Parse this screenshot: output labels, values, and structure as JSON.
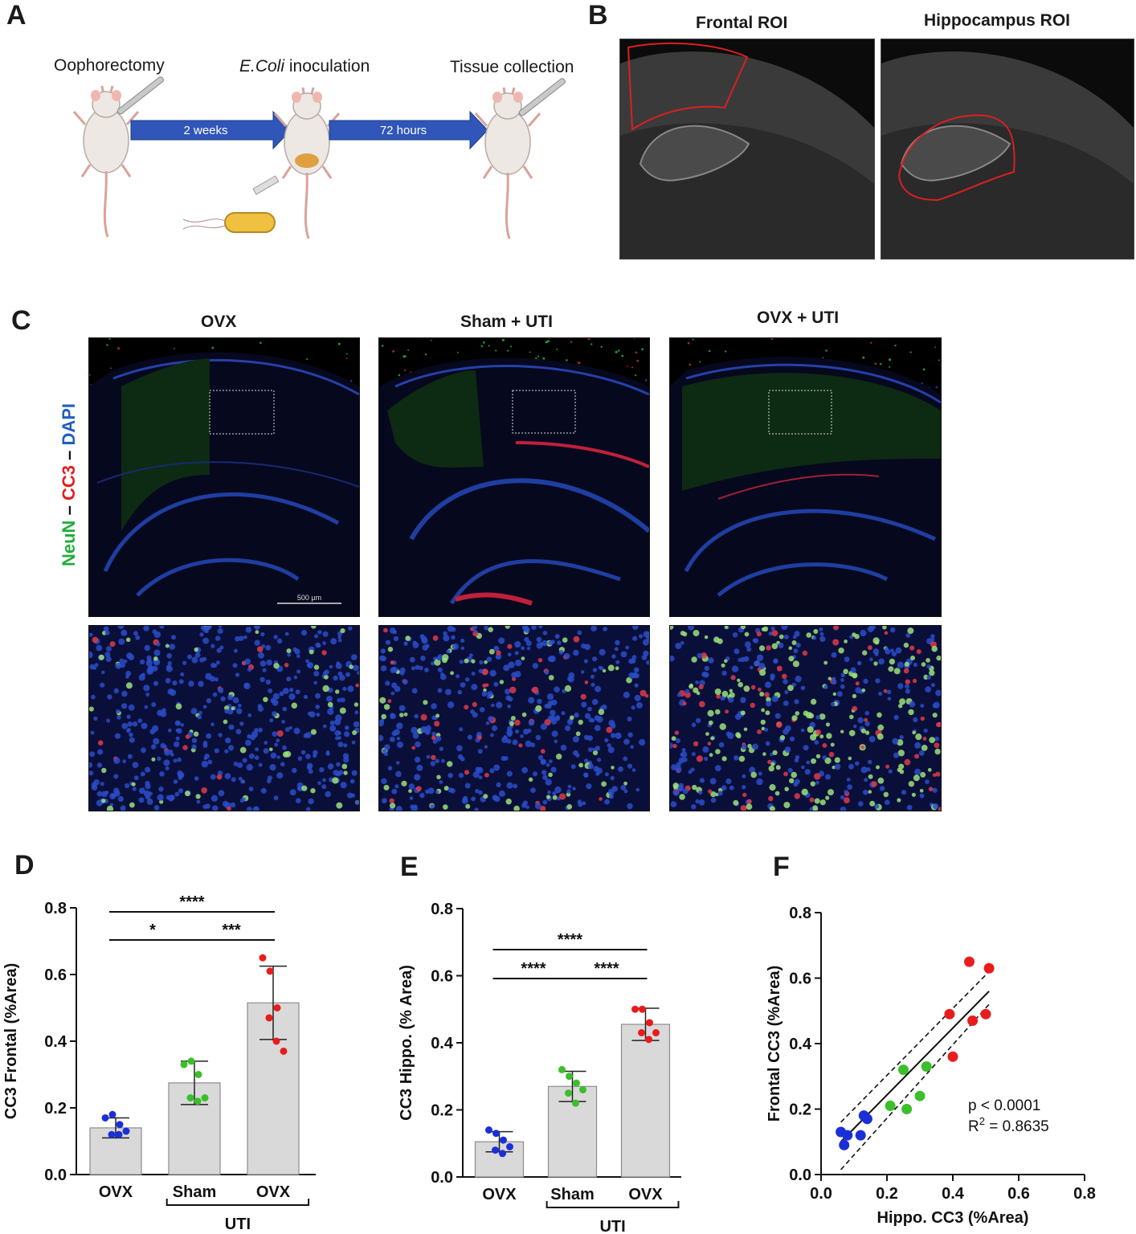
{
  "panel_A": {
    "letter": "A",
    "steps": [
      "Oophorectomy",
      "E.Coli",
      "inoculation",
      "Tissue collection"
    ],
    "arrow_1": "2 weeks",
    "arrow_2": "72 hours"
  },
  "panel_B": {
    "letter": "B",
    "roi_1": "Frontal ROI",
    "roi_2": "Hippocampus ROI"
  },
  "panel_C": {
    "letter": "C",
    "groups": [
      "OVX",
      "Sham + UTI",
      "OVX + UTI"
    ],
    "stain_labels": [
      "NeuN",
      "–",
      "CC3",
      "–",
      "DAPI"
    ],
    "scale_bar": "500 μm",
    "colors": {
      "neun": "#1fae3a",
      "cc3": "#e01f1f",
      "dapi": "#1f5fbf"
    }
  },
  "chart_data": [
    {
      "panel": "D",
      "type": "bar",
      "ylabel": "CC3 Frontal (%Area)",
      "categories": [
        "OVX",
        "Sham",
        "OVX"
      ],
      "group_label": "UTI",
      "ylim": [
        0,
        0.8
      ],
      "yticks": [
        "0.0",
        "0.2",
        "0.4",
        "0.6",
        "0.8"
      ],
      "values": [
        0.14,
        0.275,
        0.515
      ],
      "sd": [
        0.03,
        0.065,
        0.11
      ],
      "points": [
        [
          0.17,
          0.18,
          0.15,
          0.12,
          0.12,
          0.13
        ],
        [
          0.33,
          0.34,
          0.3,
          0.23,
          0.22,
          0.23
        ],
        [
          0.65,
          0.61,
          0.5,
          0.47,
          0.4,
          0.37
        ]
      ],
      "point_colors": [
        "#1b2fd8",
        "#3bbf2a",
        "#e81c1c"
      ],
      "significance": [
        {
          "from": 0,
          "to": 2,
          "label": "****"
        },
        {
          "from": 0,
          "to": 1,
          "label": "*"
        },
        {
          "from": 1,
          "to": 2,
          "label": "***"
        }
      ]
    },
    {
      "panel": "E",
      "type": "bar",
      "ylabel": "CC3 Hippo. (% Area)",
      "categories": [
        "OVX",
        "Sham",
        "OVX"
      ],
      "group_label": "UTI",
      "ylim": [
        0,
        0.8
      ],
      "yticks": [
        "0.0",
        "0.2",
        "0.4",
        "0.6",
        "0.8"
      ],
      "values": [
        0.105,
        0.27,
        0.455
      ],
      "sd": [
        0.03,
        0.045,
        0.048
      ],
      "points": [
        [
          0.14,
          0.13,
          0.11,
          0.08,
          0.07,
          0.09
        ],
        [
          0.32,
          0.3,
          0.28,
          0.25,
          0.22,
          0.26
        ],
        [
          0.5,
          0.5,
          0.46,
          0.43,
          0.41,
          0.43
        ]
      ],
      "point_colors": [
        "#1b2fd8",
        "#3bbf2a",
        "#e81c1c"
      ],
      "significance": [
        {
          "from": 0,
          "to": 2,
          "label": "****"
        },
        {
          "from": 0,
          "to": 1,
          "label": "****"
        },
        {
          "from": 1,
          "to": 2,
          "label": "****"
        }
      ]
    },
    {
      "panel": "F",
      "type": "scatter",
      "xlabel": "Hippo. CC3 (%Area)",
      "ylabel": "Frontal CC3 (%Area)",
      "xlim": [
        0,
        0.8
      ],
      "ylim": [
        0,
        0.8
      ],
      "xticks": [
        "0.0",
        "0.2",
        "0.4",
        "0.6",
        "0.8"
      ],
      "yticks": [
        "0.0",
        "0.2",
        "0.4",
        "0.6",
        "0.8"
      ],
      "series": [
        {
          "color": "#1b2fd8",
          "x": [
            0.06,
            0.08,
            0.07,
            0.12,
            0.13,
            0.14
          ],
          "y": [
            0.13,
            0.12,
            0.09,
            0.12,
            0.18,
            0.17
          ]
        },
        {
          "color": "#3bbf2a",
          "x": [
            0.25,
            0.32,
            0.21,
            0.3,
            0.26
          ],
          "y": [
            0.32,
            0.33,
            0.21,
            0.24,
            0.2
          ]
        },
        {
          "color": "#e81c1c",
          "x": [
            0.45,
            0.51,
            0.39,
            0.46,
            0.5,
            0.4
          ],
          "y": [
            0.65,
            0.63,
            0.49,
            0.47,
            0.49,
            0.36
          ]
        }
      ],
      "fit": {
        "x": [
          0.06,
          0.51
        ],
        "y": [
          0.1,
          0.56
        ]
      },
      "annotation_p": "p < 0.0001",
      "annotation_r2": "R",
      "annotation_r2_sup": "2",
      "annotation_r2_value": " = 0.8635"
    }
  ]
}
